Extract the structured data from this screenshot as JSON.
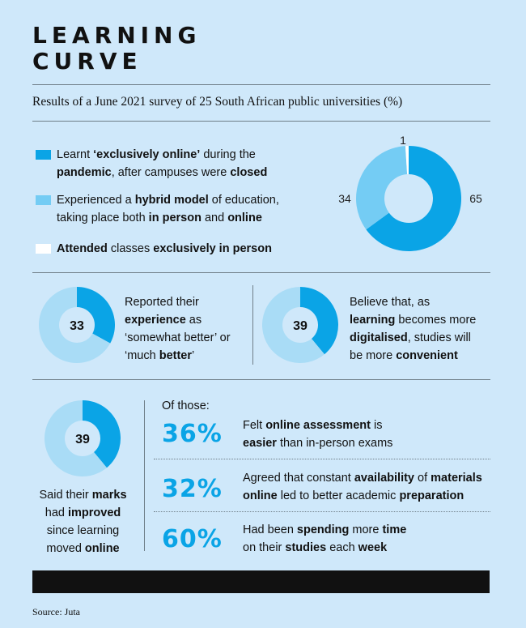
{
  "title_line1": "LEARNING",
  "title_line2": "CURVE",
  "subtitle": "Results of a June 2021 survey of 25 South African public universities (%)",
  "colors": {
    "online": "#0aa4e6",
    "hybrid": "#74ccf4",
    "in_person": "#ffffff",
    "rest": "#a9dcf6",
    "pct": "#0aa4e6"
  },
  "legend": {
    "online": {
      "a": "Learnt ",
      "b": "‘exclusively online’",
      "c": " during the",
      "d": "pandemic",
      "e": ", after campuses were ",
      "f": "closed"
    },
    "hybrid": {
      "a": "Experienced a ",
      "b": "hybrid model",
      "c": " of education,",
      "d": "taking place both ",
      "e": "in person",
      "f": " and ",
      "g": "online"
    },
    "inperson": {
      "a": "Attended",
      "b": " classes ",
      "c": "exclusively in person"
    }
  },
  "chart_data": [
    {
      "type": "pie",
      "categories": [
        "Exclusively online",
        "Hybrid model",
        "Exclusively in person"
      ],
      "values": [
        65,
        34,
        1
      ],
      "labels": [
        "65",
        "34",
        "1"
      ]
    },
    {
      "type": "pie",
      "values": [
        33,
        67
      ],
      "center_label": "33",
      "caption": [
        "Reported their ",
        "experience",
        " as",
        "‘somewhat better’ or",
        "‘much ",
        "better",
        "’"
      ]
    },
    {
      "type": "pie",
      "values": [
        39,
        61
      ],
      "center_label": "39",
      "caption": [
        "Believe that, as",
        "learning",
        " becomes more",
        "digitalised",
        ", studies will",
        "be more ",
        "convenient"
      ]
    },
    {
      "type": "pie",
      "values": [
        39,
        61
      ],
      "center_label": "39",
      "caption": [
        "Said their ",
        "marks",
        "had ",
        "improved",
        "since learning",
        "moved ",
        "online"
      ]
    }
  ],
  "of_those": "Of those:",
  "stats": [
    {
      "pct": "36%",
      "l1a": "Felt ",
      "l1b": "online assessment",
      "l1c": " is",
      "l2a": "easier",
      "l2b": " than in-person exams",
      "l2c": ""
    },
    {
      "pct": "32%",
      "l1a": "Agreed that constant ",
      "l1b": "availability",
      "l1c": " of ",
      "l1d": "materials",
      "l2a": "online",
      "l2b": " led to better academic ",
      "l2c": "preparation"
    },
    {
      "pct": "60%",
      "l1a": "Had been ",
      "l1b": "spending",
      "l1c": " more ",
      "l1d": "time",
      "l2a": "on their ",
      "l2b": "studies",
      "l2c": " each ",
      "l2d": "week"
    }
  ],
  "source": "Source: Juta"
}
